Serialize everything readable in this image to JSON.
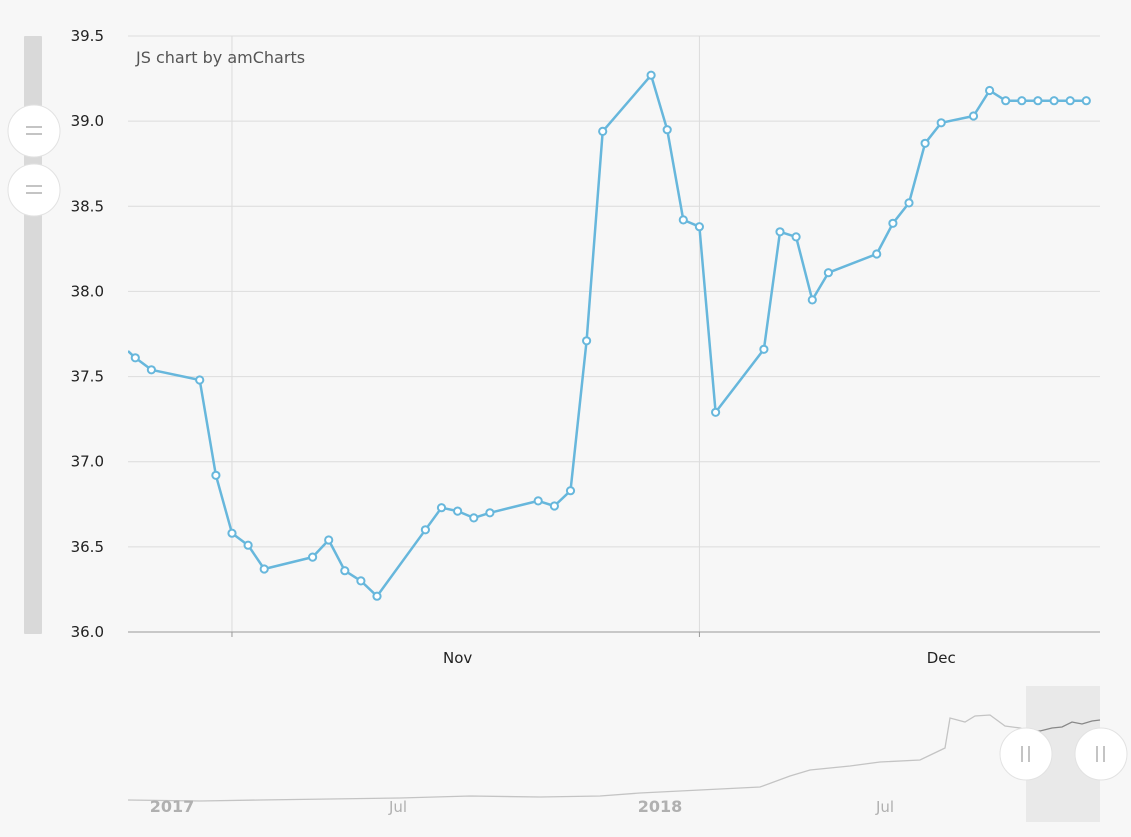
{
  "credit": "JS chart by amCharts",
  "colors": {
    "series": "#67b7dc",
    "grid": "#dcdcdc",
    "navigator_line": "#c4c4c4",
    "navigator_selected_line": "#888888"
  },
  "chart_data": {
    "type": "line",
    "title": "",
    "xlabel": "",
    "ylabel": "",
    "ylim": [
      36.0,
      39.5
    ],
    "yticks": [
      "36.0",
      "36.5",
      "37.0",
      "37.5",
      "38.0",
      "38.5",
      "39.0",
      "39.5"
    ],
    "xticks": [
      "Nov",
      "Dec"
    ],
    "grid": true,
    "series": [
      {
        "x": [
          "2018-10-12",
          "2018-10-13",
          "2018-10-16",
          "2018-10-17",
          "2018-10-18",
          "2018-10-19",
          "2018-10-20",
          "2018-10-23",
          "2018-10-24",
          "2018-10-25",
          "2018-10-26",
          "2018-10-27",
          "2018-10-30",
          "2018-10-31",
          "2018-11-01",
          "2018-11-02",
          "2018-11-03",
          "2018-11-06",
          "2018-11-07",
          "2018-11-08",
          "2018-11-09",
          "2018-11-10",
          "2018-11-13",
          "2018-11-14",
          "2018-11-15",
          "2018-11-16",
          "2018-11-17",
          "2018-11-20",
          "2018-11-21",
          "2018-11-22",
          "2018-11-23",
          "2018-11-24",
          "2018-11-27",
          "2018-11-28",
          "2018-11-29",
          "2018-11-30",
          "2018-12-01",
          "2018-12-03",
          "2018-12-04",
          "2018-12-05",
          "2018-12-06",
          "2018-12-07",
          "2018-12-08",
          "2018-12-09",
          "2018-12-10"
        ],
        "values": [
          37.61,
          37.54,
          37.48,
          36.92,
          36.58,
          36.51,
          36.37,
          36.44,
          36.54,
          36.36,
          36.3,
          36.21,
          36.6,
          36.73,
          36.71,
          36.67,
          36.7,
          36.77,
          36.74,
          36.83,
          37.71,
          38.94,
          39.27,
          38.95,
          38.42,
          38.38,
          37.29,
          37.66,
          38.35,
          38.32,
          37.95,
          38.11,
          38.22,
          38.4,
          38.52,
          38.87,
          38.99,
          39.03,
          39.18,
          39.12,
          39.12,
          39.12,
          39.12,
          39.12,
          39.12
        ]
      }
    ],
    "navigator": {
      "labels": [
        "2017",
        "Jul",
        "2018",
        "Jul"
      ],
      "bold_labels": [
        true,
        false,
        true,
        false
      ]
    }
  }
}
